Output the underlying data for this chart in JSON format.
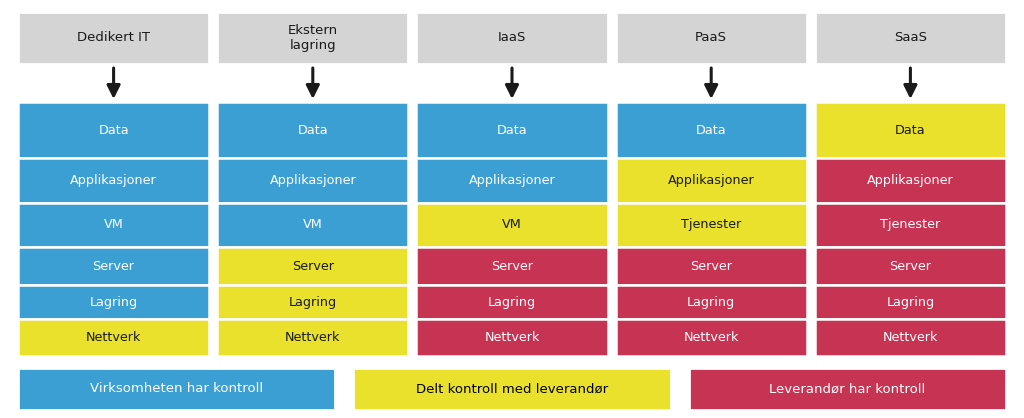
{
  "columns": [
    "Dedikert IT",
    "Ekstern\nlagring",
    "IaaS",
    "PaaS",
    "SaaS"
  ],
  "row_labels": {
    "Dedikert IT": [
      "Data",
      "Applikasjoner",
      "VM",
      "Server",
      "Lagring",
      "Nettverk"
    ],
    "Ekstern\nlagring": [
      "Data",
      "Applikasjoner",
      "VM",
      "Server",
      "Lagring",
      "Nettverk"
    ],
    "IaaS": [
      "Data",
      "Applikasjoner",
      "VM",
      "Server",
      "Lagring",
      "Nettverk"
    ],
    "PaaS": [
      "Data",
      "Applikasjoner",
      "Tjenester",
      "Server",
      "Lagring",
      "Nettverk"
    ],
    "SaaS": [
      "Data",
      "Applikasjoner",
      "Tjenester",
      "Server",
      "Lagring",
      "Nettverk"
    ]
  },
  "cell_colors": {
    "Dedikert IT": [
      "blue",
      "blue",
      "blue",
      "blue",
      "blue",
      "yellow"
    ],
    "Ekstern\nlagring": [
      "blue",
      "blue",
      "blue",
      "yellow",
      "yellow",
      "yellow"
    ],
    "IaaS": [
      "blue",
      "blue",
      "yellow",
      "red",
      "red",
      "red"
    ],
    "PaaS": [
      "blue",
      "yellow",
      "yellow",
      "red",
      "red",
      "red"
    ],
    "SaaS": [
      "yellow",
      "red",
      "red",
      "red",
      "red",
      "red"
    ]
  },
  "color_map": {
    "blue": "#3c9fd4",
    "yellow": "#e9e12b",
    "red": "#c73352"
  },
  "text_color_map": {
    "blue": "#ffffff",
    "yellow": "#1a1a1a",
    "red": "#ffffff"
  },
  "header_bg": "#d4d4d4",
  "header_text_color": "#1a1a1a",
  "background_color": "#ffffff",
  "legend": [
    {
      "color": "blue",
      "label": "Virksomheten har kontroll",
      "text_color": "white"
    },
    {
      "color": "yellow",
      "label": "Delt kontroll med leverandør",
      "text_color": "black"
    },
    {
      "color": "red",
      "label": "Leverandør har kontroll",
      "text_color": "white"
    }
  ],
  "arrow_color": "#1a1a1a",
  "row_weights": [
    1.6,
    1.25,
    1.25,
    1.1,
    0.95,
    1.05
  ]
}
